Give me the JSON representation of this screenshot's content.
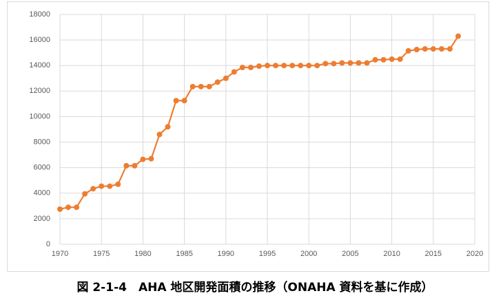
{
  "chart_data": {
    "type": "line",
    "caption": "図 2-1-4　AHA 地区開発面積の推移（ONAHA 資料を基に作成）",
    "x": [
      1970,
      1971,
      1972,
      1973,
      1974,
      1975,
      1976,
      1977,
      1978,
      1979,
      1980,
      1981,
      1982,
      1983,
      1984,
      1985,
      1986,
      1987,
      1988,
      1989,
      1990,
      1991,
      1992,
      1993,
      1994,
      1995,
      1996,
      1997,
      1998,
      1999,
      2000,
      2001,
      2002,
      2003,
      2004,
      2005,
      2006,
      2007,
      2008,
      2009,
      2010,
      2011,
      2012,
      2013,
      2014,
      2015,
      2016,
      2017,
      2018
    ],
    "values": [
      2750,
      2900,
      2900,
      3950,
      4350,
      4550,
      4550,
      4700,
      6150,
      6150,
      6650,
      6700,
      8600,
      9200,
      11250,
      11250,
      12350,
      12350,
      12350,
      12700,
      13000,
      13500,
      13850,
      13850,
      13950,
      14000,
      14000,
      14000,
      14000,
      14000,
      14000,
      14000,
      14150,
      14150,
      14200,
      14200,
      14200,
      14200,
      14450,
      14450,
      14500,
      14500,
      15150,
      15250,
      15300,
      15300,
      15300,
      15300,
      16300
    ],
    "color": "#ed7d31",
    "xlim": [
      1970,
      2020
    ],
    "xticks": [
      1970,
      1975,
      1980,
      1985,
      1990,
      1995,
      2000,
      2005,
      2010,
      2015,
      2020
    ],
    "ylim": [
      0,
      18000
    ],
    "yticks": [
      0,
      2000,
      4000,
      6000,
      8000,
      10000,
      12000,
      14000,
      16000,
      18000
    ],
    "grid": true
  }
}
